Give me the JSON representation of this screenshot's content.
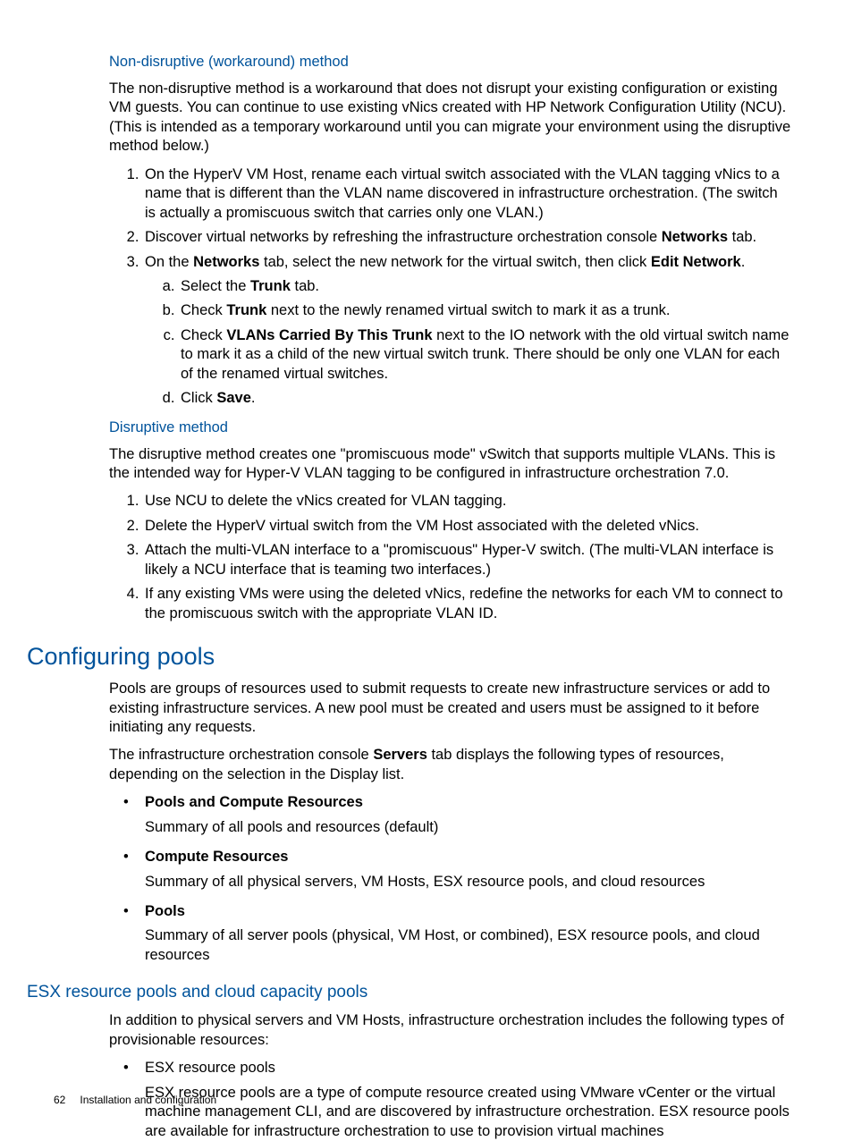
{
  "colors": {
    "heading": "#00539b",
    "text": "#000000",
    "background": "#ffffff"
  },
  "section1": {
    "h4": "Non-disruptive (workaround) method",
    "p1": "The non-disruptive method is a workaround that does not disrupt your existing configuration or existing VM guests. You can continue to use existing vNics created with HP Network Configuration Utility (NCU). (This is intended as a temporary workaround until you can migrate your environment using the disruptive method below.)",
    "li1": "On the HyperV VM Host, rename each virtual switch associated with the VLAN tagging vNics to a name that is different than the VLAN name discovered in infrastructure orchestration. (The switch is actually a promiscuous switch that carries only one VLAN.)",
    "li2_a": "Discover virtual networks by refreshing the infrastructure orchestration console ",
    "li2_b": "Networks",
    "li2_c": " tab.",
    "li3_a": "On the ",
    "li3_b": "Networks",
    "li3_c": " tab, select the new network for the virtual switch, then click ",
    "li3_d": "Edit Network",
    "li3_e": ".",
    "li3a_a": "Select the ",
    "li3a_b": "Trunk",
    "li3a_c": " tab.",
    "li3b_a": "Check ",
    "li3b_b": "Trunk",
    "li3b_c": " next to the newly renamed virtual switch to mark it as a trunk.",
    "li3c_a": "Check ",
    "li3c_b": "VLANs Carried By This Trunk",
    "li3c_c": " next to the IO network with the old virtual switch name to mark it as a child of the new virtual switch trunk. There should be only one VLAN for each of the renamed virtual switches.",
    "li3d_a": "Click ",
    "li3d_b": "Save",
    "li3d_c": "."
  },
  "section2": {
    "h4": "Disruptive method",
    "p1": "The disruptive method creates one \"promiscuous mode\" vSwitch that supports multiple VLANs. This is the intended way for Hyper-V VLAN tagging to be configured in infrastructure orchestration 7.0.",
    "li1": "Use NCU to delete the vNics created for VLAN tagging.",
    "li2": "Delete the HyperV virtual switch from the VM Host associated with the deleted vNics.",
    "li3": "Attach the multi-VLAN interface to a \"promiscuous\" Hyper-V switch. (The multi-VLAN interface is likely a NCU interface that is teaming two interfaces.)",
    "li4": "If any existing VMs were using the deleted vNics, redefine the networks for each VM to connect to the promiscuous switch with the appropriate VLAN ID."
  },
  "section3": {
    "h2": "Configuring pools",
    "p1": "Pools are groups of resources used to submit requests to create new infrastructure services or add to existing infrastructure services. A new pool must be created and users must be assigned to it before initiating any requests.",
    "p2_a": "The infrastructure orchestration console ",
    "p2_b": "Servers",
    "p2_c": " tab displays the following types of resources, depending on the selection in the Display list.",
    "b1_t": "Pools and Compute Resources",
    "b1_d": "Summary of all pools and resources (default)",
    "b2_t": "Compute Resources",
    "b2_d": "Summary of all physical servers, VM Hosts, ESX resource pools, and cloud resources",
    "b3_t": "Pools",
    "b3_d": "Summary of all server pools (physical, VM Host, or combined), ESX resource pools, and cloud resources"
  },
  "section4": {
    "h3": "ESX resource pools and cloud capacity pools",
    "p1": "In addition to physical servers and VM Hosts, infrastructure orchestration includes the following types of provisionable resources:",
    "b1_t": "ESX resource pools",
    "b1_d": "ESX resource pools are a type of compute resource created using VMware vCenter or the virtual machine management CLI, and are discovered by infrastructure orchestration. ESX resource pools are available for infrastructure orchestration to use to provision virtual machines"
  },
  "footer": {
    "page": "62",
    "title": "Installation and configuration"
  }
}
